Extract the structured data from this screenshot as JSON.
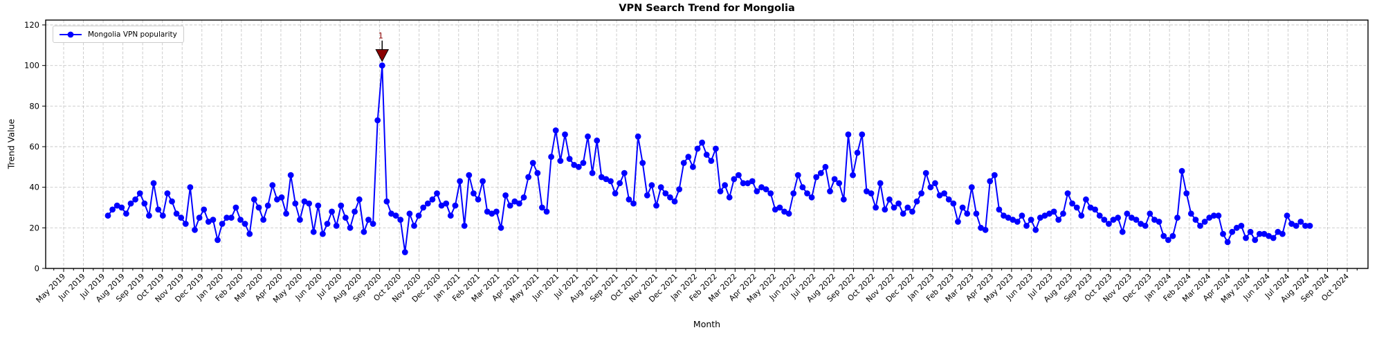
{
  "figure": {
    "title": "VPN Search Trend for Mongolia",
    "xlabel": "Month",
    "ylabel": "Trend Value"
  },
  "legend": {
    "label": "Mongolia VPN popularity"
  },
  "colors": {
    "line": "#0000ff",
    "marker": "#0000ff",
    "grid": "#c7c7c7",
    "axis": "#000000",
    "annotation_fill": "#8b0000",
    "annotation_text": "#8b0000",
    "background": "#ffffff"
  },
  "chart_data": {
    "type": "line",
    "title": "VPN Search Trend for Mongolia",
    "xlabel": "Month",
    "ylabel": "Trend Value",
    "ylim": [
      0,
      120
    ],
    "grid": true,
    "legend_position": "upper left",
    "y_ticks": [
      0,
      20,
      40,
      60,
      80,
      100,
      120
    ],
    "x_tick_labels": [
      "May 2019",
      "Jun 2019",
      "Jul 2019",
      "Aug 2019",
      "Sep 2019",
      "Oct 2019",
      "Nov 2019",
      "Dec 2019",
      "Jan 2020",
      "Feb 2020",
      "Mar 2020",
      "Apr 2020",
      "May 2020",
      "Jun 2020",
      "Jul 2020",
      "Aug 2020",
      "Sep 2020",
      "Oct 2020",
      "Nov 2020",
      "Dec 2020",
      "Jan 2021",
      "Feb 2021",
      "Mar 2021",
      "Apr 2021",
      "May 2021",
      "Jun 2021",
      "Jul 2021",
      "Aug 2021",
      "Sep 2021",
      "Oct 2021",
      "Nov 2021",
      "Dec 2021",
      "Jan 2022",
      "Feb 2022",
      "Mar 2022",
      "Apr 2022",
      "May 2022",
      "Jun 2022",
      "Jul 2022",
      "Aug 2022",
      "Sep 2022",
      "Oct 2022",
      "Nov 2022",
      "Dec 2022",
      "Jan 2023",
      "Feb 2023",
      "Mar 2023",
      "Apr 2023",
      "May 2023",
      "Jun 2023",
      "Jul 2023",
      "Aug 2023",
      "Sep 2023",
      "Oct 2023",
      "Nov 2023",
      "Dec 2023",
      "Jan 2024",
      "Feb 2024",
      "Mar 2024",
      "Apr 2024",
      "May 2024",
      "Jun 2024",
      "Jul 2024",
      "Aug 2024",
      "Sep 2024",
      "Oct 2024"
    ],
    "series": [
      {
        "name": "Mongolia VPN popularity",
        "color": "#0000ff",
        "marker": "circle",
        "values": [
          26,
          29,
          31,
          30,
          27,
          32,
          34,
          37,
          32,
          26,
          42,
          29,
          26,
          37,
          33,
          27,
          25,
          22,
          40,
          19,
          25,
          29,
          23,
          24,
          14,
          22,
          25,
          25,
          30,
          24,
          22,
          17,
          34,
          30,
          24,
          31,
          41,
          34,
          35,
          27,
          46,
          32,
          24,
          33,
          32,
          18,
          31,
          17,
          22,
          28,
          21,
          31,
          25,
          20,
          28,
          34,
          18,
          24,
          22,
          73,
          100,
          33,
          27,
          26,
          24,
          8,
          27,
          21,
          26,
          30,
          32,
          34,
          37,
          31,
          32,
          26,
          31,
          43,
          21,
          46,
          37,
          34,
          43,
          28,
          27,
          28,
          20,
          36,
          31,
          33,
          32,
          35,
          45,
          52,
          47,
          30,
          28,
          55,
          68,
          53,
          66,
          54,
          51,
          50,
          52,
          65,
          47,
          63,
          45,
          44,
          43,
          37,
          42,
          47,
          34,
          32,
          65,
          52,
          36,
          41,
          31,
          40,
          37,
          35,
          33,
          39,
          52,
          55,
          50,
          59,
          62,
          56,
          53,
          59,
          38,
          41,
          35,
          44,
          46,
          42,
          42,
          43,
          38,
          40,
          39,
          37,
          29,
          30,
          28,
          27,
          37,
          46,
          40,
          37,
          35,
          45,
          47,
          50,
          38,
          44,
          42,
          34,
          66,
          46,
          57,
          66,
          38,
          37,
          30,
          42,
          29,
          34,
          30,
          32,
          27,
          30,
          28,
          33,
          37,
          47,
          40,
          42,
          36,
          37,
          34,
          32,
          23,
          30,
          27,
          40,
          27,
          20,
          19,
          43,
          46,
          29,
          26,
          25,
          24,
          23,
          26,
          21,
          24,
          19,
          25,
          26,
          27,
          28,
          24,
          27,
          37,
          32,
          30,
          26,
          34,
          30,
          29,
          26,
          24,
          22,
          24,
          25,
          18,
          27,
          25,
          24,
          22,
          21,
          27,
          24,
          23,
          16,
          14,
          16,
          25,
          48,
          37,
          27,
          24,
          21,
          23,
          25,
          26,
          26,
          17,
          13,
          18,
          20,
          21,
          15,
          18,
          14,
          17,
          17,
          16,
          15,
          18,
          17,
          26,
          22,
          21,
          23,
          21,
          21
        ]
      }
    ],
    "annotations": [
      {
        "label": "1",
        "type": "peak-wedge-marker",
        "value": 100,
        "color": "#8b0000"
      }
    ]
  }
}
